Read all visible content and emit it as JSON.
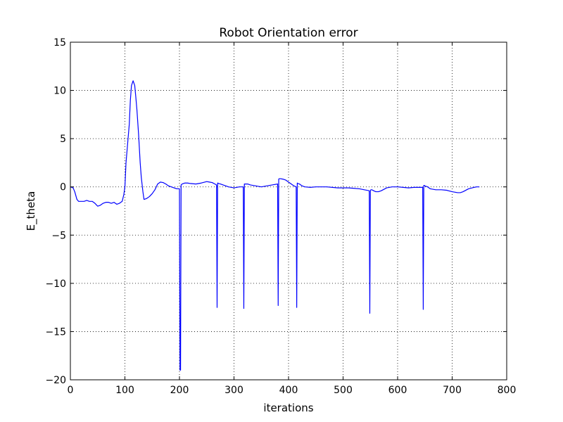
{
  "chart_data": {
    "type": "line",
    "title": "Robot Orientation error",
    "xlabel": "iterations",
    "ylabel": "E_theta",
    "xlim": [
      0,
      800
    ],
    "ylim": [
      -20,
      15
    ],
    "xticks": [
      0,
      100,
      200,
      300,
      400,
      500,
      600,
      700,
      800
    ],
    "xtick_labels": [
      "0",
      "100",
      "200",
      "300",
      "400",
      "500",
      "600",
      "700",
      "800"
    ],
    "yticks": [
      -20,
      -15,
      -10,
      -5,
      0,
      5,
      10,
      15
    ],
    "ytick_labels": [
      "−20",
      "−15",
      "−10",
      "−5",
      "0",
      "5",
      "10",
      "15"
    ],
    "grid": true,
    "line_color": "#0000ff",
    "series": [
      {
        "x": [
          0,
          5,
          8,
          12,
          15,
          20,
          25,
          30,
          35,
          40,
          45,
          50,
          55,
          60,
          65,
          70,
          75,
          80,
          85,
          90,
          95,
          98,
          100,
          102,
          105,
          108,
          110,
          112,
          115,
          118,
          120,
          122,
          125,
          128,
          130,
          133,
          135,
          140,
          145,
          150,
          155,
          160,
          165,
          170,
          175,
          180,
          185,
          190,
          195,
          200,
          201,
          202,
          203,
          205,
          210,
          215,
          220,
          230,
          240,
          250,
          255,
          260,
          265,
          268,
          269,
          270,
          272,
          275,
          280,
          285,
          290,
          300,
          310,
          317,
          318,
          319,
          320,
          322,
          325,
          330,
          340,
          350,
          360,
          370,
          380,
          381,
          382,
          383,
          385,
          390,
          395,
          400,
          405,
          410,
          414,
          415,
          416,
          417,
          420,
          425,
          430,
          440,
          450,
          460,
          470,
          480,
          490,
          500,
          510,
          520,
          530,
          548,
          549,
          550,
          551,
          553,
          556,
          560,
          565,
          570,
          580,
          590,
          600,
          610,
          620,
          630,
          640,
          646,
          647,
          648,
          649,
          650,
          655,
          660,
          670,
          680,
          690,
          700,
          710,
          715,
          720,
          730,
          740,
          745,
          750
        ],
        "y": [
          0,
          -0.1,
          -0.5,
          -1.3,
          -1.5,
          -1.5,
          -1.5,
          -1.4,
          -1.5,
          -1.5,
          -1.7,
          -2.0,
          -1.9,
          -1.7,
          -1.6,
          -1.6,
          -1.7,
          -1.6,
          -1.8,
          -1.7,
          -1.5,
          -0.8,
          0,
          2.5,
          4.5,
          6.5,
          9,
          10.5,
          11,
          10.5,
          9.3,
          8.0,
          5.5,
          2.5,
          1.0,
          -0.5,
          -1.3,
          -1.2,
          -1.0,
          -0.7,
          -0.3,
          0.3,
          0.5,
          0.45,
          0.3,
          0.1,
          0,
          -0.1,
          -0.2,
          -0.2,
          -19,
          -19,
          0.2,
          0.3,
          0.4,
          0.4,
          0.35,
          0.3,
          0.4,
          0.55,
          0.5,
          0.45,
          0.3,
          0.2,
          -12.5,
          0.4,
          0.35,
          0.3,
          0.2,
          0.1,
          0.0,
          -0.1,
          0.0,
          0.0,
          -12.6,
          0.3,
          0.3,
          0.3,
          0.3,
          0.2,
          0.1,
          0.0,
          0.1,
          0.2,
          0.3,
          -12.3,
          0.8,
          0.85,
          0.85,
          0.8,
          0.7,
          0.5,
          0.3,
          0.1,
          0.0,
          -12.5,
          0.4,
          0.35,
          0.3,
          0.1,
          0.0,
          -0.05,
          0.0,
          0.0,
          0.0,
          -0.05,
          -0.1,
          -0.1,
          -0.1,
          -0.15,
          -0.2,
          -0.4,
          -13.1,
          -0.4,
          -0.3,
          -0.3,
          -0.4,
          -0.5,
          -0.5,
          -0.4,
          -0.1,
          0.0,
          0.0,
          -0.05,
          -0.1,
          -0.05,
          -0.05,
          -0.05,
          -12.7,
          0.15,
          0.15,
          0.1,
          0.0,
          -0.2,
          -0.3,
          -0.3,
          -0.35,
          -0.5,
          -0.6,
          -0.6,
          -0.5,
          -0.2,
          -0.05,
          0.0,
          0.0
        ]
      }
    ]
  }
}
